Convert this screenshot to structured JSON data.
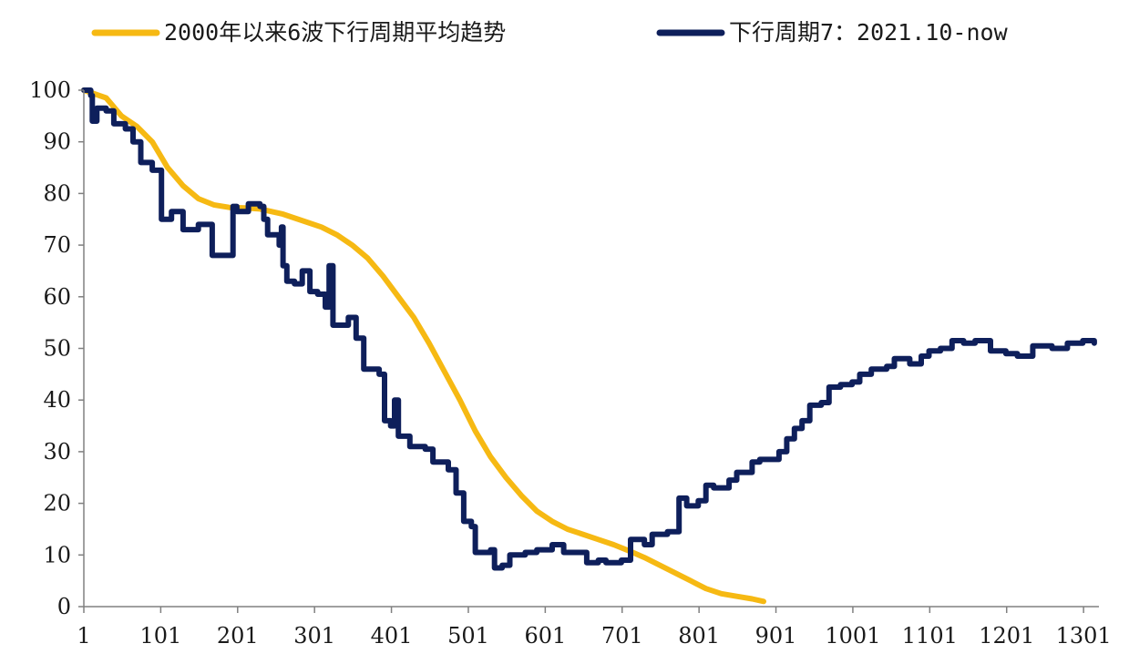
{
  "chart_data": {
    "type": "line",
    "title": "",
    "xlabel": "",
    "ylabel": "",
    "xlim": [
      1,
      1321
    ],
    "ylim": [
      0,
      100
    ],
    "x_ticks": [
      1,
      101,
      201,
      301,
      401,
      501,
      601,
      701,
      801,
      901,
      1001,
      1101,
      1201,
      1301
    ],
    "x_tick_labels": [
      "1",
      "101",
      "201",
      "301",
      "401",
      "501",
      "601",
      "701",
      "801",
      "901",
      "1001",
      "1101",
      "1201",
      "1301"
    ],
    "y_ticks": [
      0,
      10,
      20,
      30,
      40,
      50,
      60,
      70,
      80,
      90,
      100
    ],
    "y_tick_labels": [
      "0",
      "10",
      "20",
      "30",
      "40",
      "50",
      "60",
      "70",
      "80",
      "90",
      "100"
    ],
    "grid": false,
    "legend_position": "top",
    "series": [
      {
        "name": "2000年以来6波下行周期平均趋势",
        "color": "#F6B913",
        "step": false,
        "points": [
          [
            1,
            100
          ],
          [
            30,
            98.5
          ],
          [
            50,
            95
          ],
          [
            70,
            93
          ],
          [
            90,
            90
          ],
          [
            110,
            85
          ],
          [
            130,
            81.5
          ],
          [
            150,
            79
          ],
          [
            170,
            77.8
          ],
          [
            190,
            77.3
          ],
          [
            210,
            77.2
          ],
          [
            230,
            77
          ],
          [
            260,
            76
          ],
          [
            290,
            74.5
          ],
          [
            310,
            73.5
          ],
          [
            330,
            72
          ],
          [
            350,
            70
          ],
          [
            370,
            67.5
          ],
          [
            390,
            64
          ],
          [
            410,
            60
          ],
          [
            430,
            56
          ],
          [
            450,
            51
          ],
          [
            470,
            45.5
          ],
          [
            490,
            40
          ],
          [
            510,
            34
          ],
          [
            530,
            29
          ],
          [
            550,
            25
          ],
          [
            570,
            21.5
          ],
          [
            590,
            18.5
          ],
          [
            610,
            16.5
          ],
          [
            630,
            15
          ],
          [
            650,
            14
          ],
          [
            670,
            13
          ],
          [
            690,
            12
          ],
          [
            710,
            10.8
          ],
          [
            730,
            9.5
          ],
          [
            750,
            8
          ],
          [
            770,
            6.5
          ],
          [
            790,
            5
          ],
          [
            810,
            3.5
          ],
          [
            830,
            2.5
          ],
          [
            850,
            2
          ],
          [
            870,
            1.5
          ],
          [
            885,
            1
          ]
        ]
      },
      {
        "name": "下行周期7：2021.10-now",
        "color": "#0E1F5B",
        "step": true,
        "points": [
          [
            1,
            100
          ],
          [
            10,
            99
          ],
          [
            12,
            94
          ],
          [
            18,
            96.5
          ],
          [
            30,
            96
          ],
          [
            40,
            93.5
          ],
          [
            55,
            92.5
          ],
          [
            65,
            90
          ],
          [
            75,
            86
          ],
          [
            90,
            84.5
          ],
          [
            102,
            75
          ],
          [
            115,
            76.5
          ],
          [
            130,
            73
          ],
          [
            150,
            74
          ],
          [
            168,
            68
          ],
          [
            190,
            68
          ],
          [
            195,
            77.5
          ],
          [
            200,
            76.5
          ],
          [
            215,
            78
          ],
          [
            230,
            77.5
          ],
          [
            235,
            75
          ],
          [
            240,
            72
          ],
          [
            255,
            70
          ],
          [
            258,
            73.5
          ],
          [
            260,
            66
          ],
          [
            265,
            63
          ],
          [
            275,
            62.5
          ],
          [
            285,
            65
          ],
          [
            295,
            61
          ],
          [
            305,
            60.5
          ],
          [
            315,
            58
          ],
          [
            320,
            66
          ],
          [
            325,
            54.5
          ],
          [
            345,
            56
          ],
          [
            355,
            52
          ],
          [
            365,
            46
          ],
          [
            385,
            45
          ],
          [
            392,
            36
          ],
          [
            400,
            35
          ],
          [
            405,
            40
          ],
          [
            410,
            33
          ],
          [
            425,
            31
          ],
          [
            445,
            30.5
          ],
          [
            455,
            28
          ],
          [
            475,
            26.5
          ],
          [
            485,
            22
          ],
          [
            495,
            16.5
          ],
          [
            505,
            15.5
          ],
          [
            510,
            10.5
          ],
          [
            530,
            11
          ],
          [
            535,
            7.5
          ],
          [
            545,
            8
          ],
          [
            555,
            10
          ],
          [
            575,
            10.5
          ],
          [
            590,
            11
          ],
          [
            610,
            12
          ],
          [
            625,
            10.5
          ],
          [
            645,
            10.5
          ],
          [
            655,
            8.5
          ],
          [
            670,
            9
          ],
          [
            680,
            8.5
          ],
          [
            700,
            9
          ],
          [
            712,
            13
          ],
          [
            730,
            12
          ],
          [
            740,
            14
          ],
          [
            760,
            14.5
          ],
          [
            775,
            21
          ],
          [
            785,
            19.5
          ],
          [
            800,
            20.5
          ],
          [
            810,
            23.5
          ],
          [
            820,
            23
          ],
          [
            840,
            24.5
          ],
          [
            850,
            26
          ],
          [
            870,
            28
          ],
          [
            880,
            28.5
          ],
          [
            895,
            28.5
          ],
          [
            905,
            30
          ],
          [
            915,
            32.5
          ],
          [
            925,
            34.5
          ],
          [
            935,
            36
          ],
          [
            945,
            39
          ],
          [
            960,
            39.5
          ],
          [
            970,
            42.5
          ],
          [
            985,
            43
          ],
          [
            1000,
            43.5
          ],
          [
            1010,
            45
          ],
          [
            1025,
            46
          ],
          [
            1045,
            46.5
          ],
          [
            1055,
            48
          ],
          [
            1075,
            47
          ],
          [
            1090,
            48.5
          ],
          [
            1100,
            49.5
          ],
          [
            1115,
            50
          ],
          [
            1130,
            51.5
          ],
          [
            1145,
            51
          ],
          [
            1160,
            51.5
          ],
          [
            1180,
            49.5
          ],
          [
            1200,
            49
          ],
          [
            1215,
            48.5
          ],
          [
            1235,
            50.5
          ],
          [
            1260,
            50
          ],
          [
            1280,
            51
          ],
          [
            1300,
            51.5
          ],
          [
            1315,
            51
          ]
        ]
      }
    ]
  }
}
